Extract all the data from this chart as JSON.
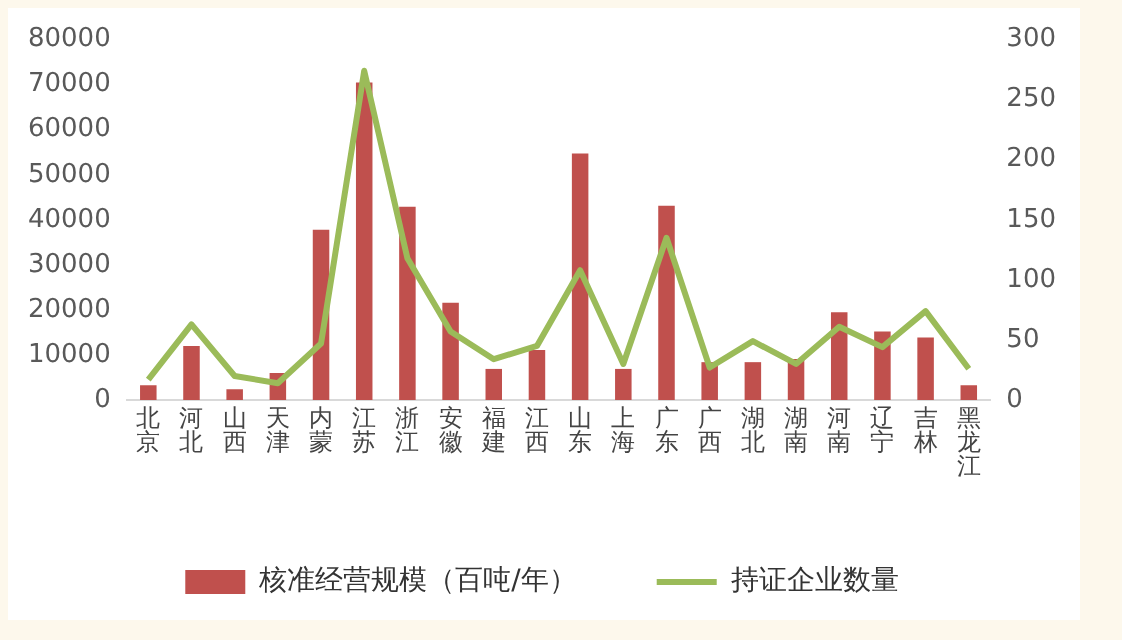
{
  "chart_data": {
    "type": "bar",
    "categories": [
      "北京",
      "河北",
      "山西",
      "天津",
      "内蒙",
      "江苏",
      "浙江",
      "安徽",
      "福建",
      "江西",
      "山东",
      "上海",
      "广东",
      "广西",
      "湖北",
      "湖南",
      "河南",
      "辽宁",
      "吉林",
      "黑龙江"
    ],
    "series": [
      {
        "name": "核准经营规模（百吨/年）",
        "color": "#c0504d",
        "values": [
          3300,
          12000,
          2400,
          6000,
          37800,
          70500,
          42900,
          21600,
          6900,
          11100,
          54700,
          6900,
          43100,
          8400,
          8400,
          9100,
          19500,
          15200,
          13900,
          3300
        ]
      },
      {
        "name": "持证企业数量",
        "type": "line",
        "axis": "y2",
        "color": "#9bbb59",
        "values": [
          17,
          63,
          20,
          14,
          47,
          274,
          118,
          57,
          34,
          45,
          108,
          30,
          135,
          27,
          49,
          30,
          61,
          44,
          74,
          26
        ]
      }
    ],
    "ylim": [
      0,
      80000
    ],
    "yticks": [
      0,
      10000,
      20000,
      30000,
      40000,
      50000,
      60000,
      70000,
      80000
    ],
    "y2lim": [
      0,
      300
    ],
    "y2ticks": [
      0,
      50,
      100,
      150,
      200,
      250,
      300
    ],
    "legend": "bottom",
    "marker": "none",
    "grid": false
  }
}
